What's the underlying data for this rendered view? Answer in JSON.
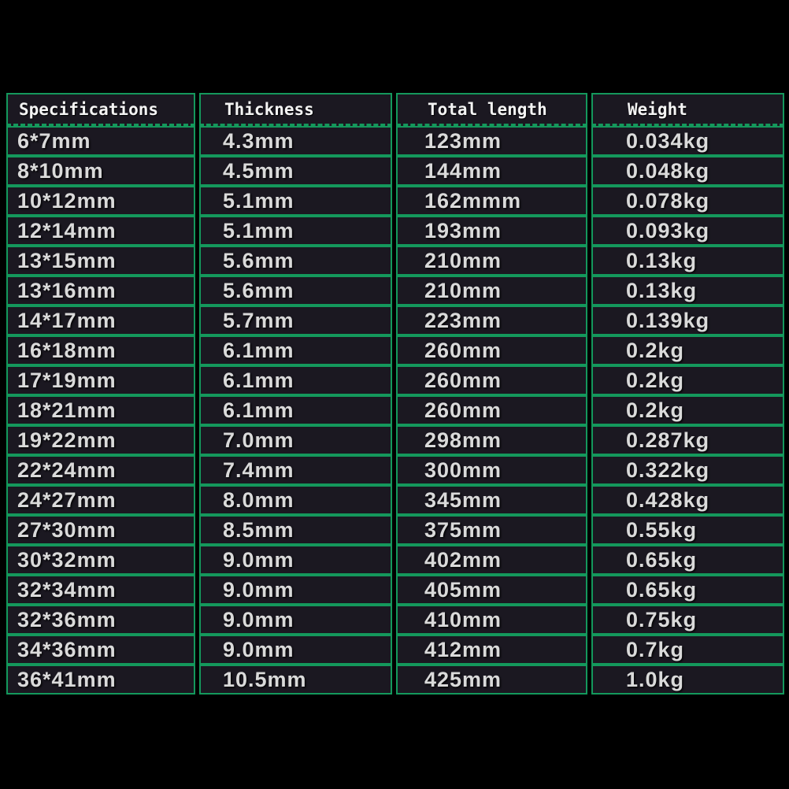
{
  "table": {
    "headers": [
      "Specifications",
      "Thickness",
      "Total length",
      "Weight"
    ],
    "rows": [
      [
        "6*7mm",
        "4.3mm",
        "123mm",
        "0.034kg"
      ],
      [
        "8*10mm",
        "4.5mm",
        "144mm",
        "0.048kg"
      ],
      [
        "10*12mm",
        "5.1mm",
        "162mmm",
        "0.078kg"
      ],
      [
        "12*14mm",
        "5.1mm",
        "193mm",
        "0.093kg"
      ],
      [
        "13*15mm",
        "5.6mm",
        "210mm",
        "0.13kg"
      ],
      [
        "13*16mm",
        "5.6mm",
        "210mm",
        "0.13kg"
      ],
      [
        "14*17mm",
        "5.7mm",
        "223mm",
        "0.139kg"
      ],
      [
        "16*18mm",
        "6.1mm",
        "260mm",
        "0.2kg"
      ],
      [
        "17*19mm",
        "6.1mm",
        "260mm",
        "0.2kg"
      ],
      [
        "18*21mm",
        "6.1mm",
        "260mm",
        "0.2kg"
      ],
      [
        "19*22mm",
        "7.0mm",
        "298mm",
        "0.287kg"
      ],
      [
        "22*24mm",
        "7.4mm",
        "300mm",
        "0.322kg"
      ],
      [
        "24*27mm",
        "8.0mm",
        "345mm",
        "0.428kg"
      ],
      [
        "27*30mm",
        "8.5mm",
        "375mm",
        "0.55kg"
      ],
      [
        "30*32mm",
        "9.0mm",
        "402mm",
        "0.65kg"
      ],
      [
        "32*34mm",
        "9.0mm",
        "405mm",
        "0.65kg"
      ],
      [
        "32*36mm",
        "9.0mm",
        "410mm",
        "0.75kg"
      ],
      [
        "34*36mm",
        "9.0mm",
        "412mm",
        "0.7kg"
      ],
      [
        "36*41mm",
        "10.5mm",
        "425mm",
        "1.0kg"
      ]
    ],
    "colors": {
      "grid_green": "#14985c",
      "cell_background": "#1b1821",
      "page_background": "#000000",
      "data_text": "#dadada",
      "header_text": "#f4f4f4"
    }
  }
}
